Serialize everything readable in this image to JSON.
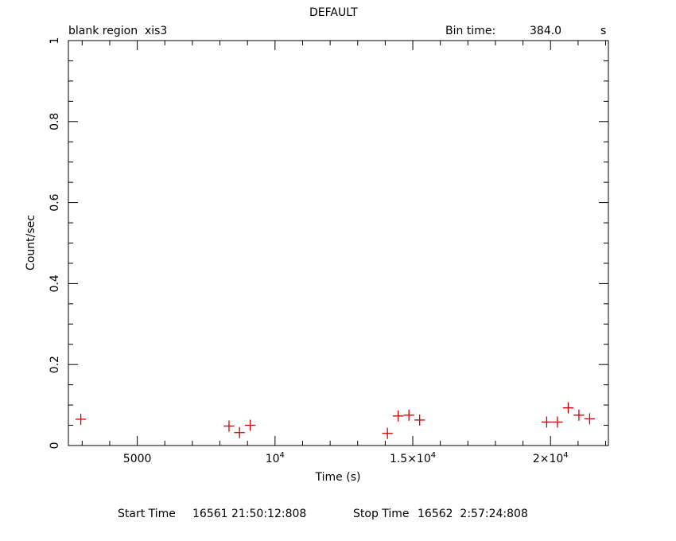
{
  "header": {
    "title": "DEFAULT",
    "left_label": "blank region  xis3",
    "bin_label": "Bin time:",
    "bin_value": "384.0",
    "bin_unit": "s"
  },
  "footer": {
    "start_label": "Start Time",
    "start_value": "16561 21:50:12:808",
    "stop_label": "Stop Time",
    "stop_value": "16562  2:57:24:808"
  },
  "colors": {
    "marker": "#cc0000",
    "axis": "#000000"
  },
  "chart_data": {
    "type": "scatter",
    "title": "DEFAULT",
    "xlabel": "Time (s)",
    "ylabel": "Count/sec",
    "xlim": [
      2500,
      22100
    ],
    "ylim": [
      0,
      1
    ],
    "x_ticks": [
      {
        "value": 5000,
        "label": "5000",
        "sup": ""
      },
      {
        "value": 10000,
        "label": "10",
        "sup": "4"
      },
      {
        "value": 15000,
        "label": "1.5×10",
        "sup": "4"
      },
      {
        "value": 20000,
        "label": "2×10",
        "sup": "4"
      }
    ],
    "y_ticks": [
      {
        "value": 0,
        "label": "0"
      },
      {
        "value": 0.2,
        "label": "0.2"
      },
      {
        "value": 0.4,
        "label": "0.4"
      },
      {
        "value": 0.6,
        "label": "0.6"
      },
      {
        "value": 0.8,
        "label": "0.8"
      },
      {
        "value": 1,
        "label": "1"
      }
    ],
    "x_error": 192,
    "points": [
      {
        "x": 2950,
        "y": 0.065
      },
      {
        "x": 8330,
        "y": 0.048
      },
      {
        "x": 8710,
        "y": 0.032
      },
      {
        "x": 9100,
        "y": 0.05
      },
      {
        "x": 14080,
        "y": 0.03
      },
      {
        "x": 14470,
        "y": 0.073
      },
      {
        "x": 14860,
        "y": 0.075
      },
      {
        "x": 15250,
        "y": 0.063
      },
      {
        "x": 19860,
        "y": 0.058
      },
      {
        "x": 20250,
        "y": 0.058
      },
      {
        "x": 20640,
        "y": 0.093
      },
      {
        "x": 21030,
        "y": 0.075
      },
      {
        "x": 21420,
        "y": 0.066
      }
    ],
    "grid": false,
    "legend": "none"
  }
}
